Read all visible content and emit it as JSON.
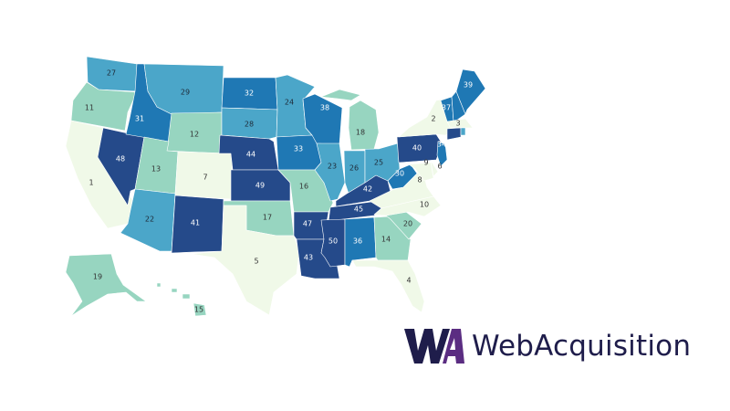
{
  "map": {
    "type": "choropleth",
    "region_ranks": {
      "WA": 27,
      "OR": 11,
      "CA": 1,
      "NV": 48,
      "ID": 31,
      "MT": 29,
      "WY": 12,
      "UT": 13,
      "CO": 7,
      "AZ": 22,
      "NM": 41,
      "ND": 32,
      "SD": 28,
      "NE": 44,
      "KS": 49,
      "OK": 17,
      "TX": 5,
      "MN": 24,
      "IA": 33,
      "MO": 16,
      "AR": 47,
      "LA": 43,
      "WI": 38,
      "IL": 23,
      "IN": 26,
      "OH": 25,
      "MI": 18,
      "KY": 42,
      "TN": 45,
      "MS": 50,
      "AL": 36,
      "GA": 14,
      "FL": 4,
      "SC": 20,
      "NC": 10,
      "VA": 8,
      "WV": 30,
      "MD": 9,
      "DE": 6,
      "PA": 40,
      "NJ": 34,
      "NY": 2,
      "VT": 37,
      "ME": 39,
      "MA": 3,
      "AK": 19,
      "HI": 15
    },
    "unlabeled_region_fills": {
      "NH": "#1f78b4",
      "CT": "#254a8a",
      "RI": "#4ba6c9"
    },
    "color_scale": [
      {
        "max_rank": 10,
        "color": "#f0f9e8",
        "text": "#333333"
      },
      {
        "max_rank": 20,
        "color": "#97d5c0",
        "text": "#333333"
      },
      {
        "max_rank": 29,
        "color": "#4ba6c9",
        "text": "#1e2a38"
      },
      {
        "max_rank": 39,
        "color": "#1f78b4",
        "text": "#ffffff"
      },
      {
        "max_rank": 50,
        "color": "#254a8a",
        "text": "#ffffff"
      }
    ]
  },
  "logo": {
    "brand_name": "WebAcquisition",
    "mark_text": "WA",
    "colors": {
      "navy": "#1f1d4b",
      "purple": "#5b2d82"
    }
  }
}
